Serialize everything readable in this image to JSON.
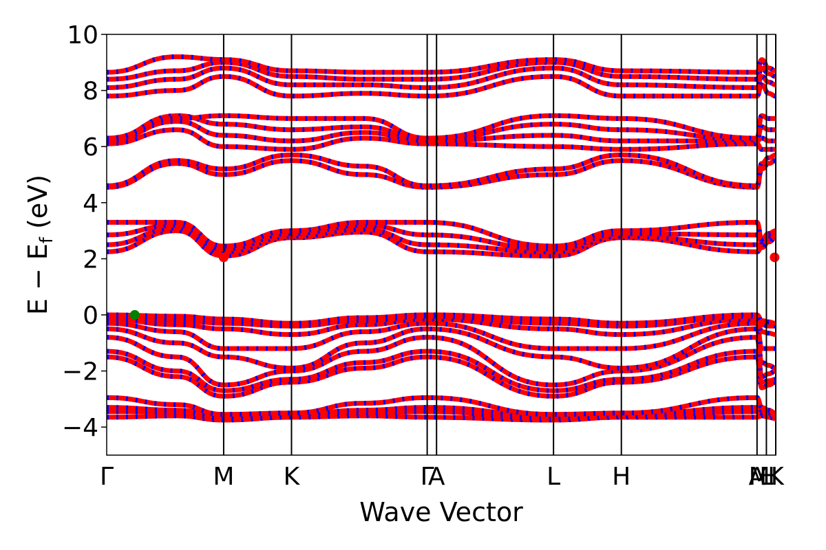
{
  "chart_data": {
    "type": "line",
    "title": "",
    "xlabel": "Wave Vector",
    "ylabel": "E − E",
    "ylabel_subscript": "f",
    "ylabel_unit": " (eV)",
    "ylim": [
      -5,
      10
    ],
    "yticks": [
      -4,
      -2,
      0,
      2,
      4,
      6,
      8,
      10
    ],
    "ytick_labels": [
      "−4",
      "−2",
      "0",
      "2",
      "4",
      "6",
      "8",
      "10"
    ],
    "xlim": [
      0,
      5.72
    ],
    "kpoints": [
      {
        "label": "Γ",
        "x": 0.0
      },
      {
        "label": "M",
        "x": 1.0
      },
      {
        "label": "K",
        "x": 1.58
      },
      {
        "label": "Γ",
        "x": 2.74
      },
      {
        "label": "A",
        "x": 2.82
      },
      {
        "label": "L",
        "x": 3.82
      },
      {
        "label": "H",
        "x": 4.4
      },
      {
        "label": "A",
        "x": 5.56
      },
      {
        "label": "L",
        "x": 5.64
      },
      {
        "label": "M",
        "x": 5.58
      },
      {
        "label": "H",
        "x": 5.66
      },
      {
        "label": "K",
        "x": 5.72
      }
    ],
    "kpoint_lines": [
      1.0,
      1.58,
      2.74,
      2.82,
      3.82,
      4.4,
      5.56,
      5.64,
      5.72
    ],
    "series": [
      {
        "color": "#ff0000",
        "dash_color": "#0000ff",
        "y": [
          -3.65,
          -3.6,
          -3.75,
          -3.65,
          -3.6,
          -3.65,
          -3.75,
          -3.65,
          -3.65,
          -3.6,
          -3.65,
          -3.7
        ]
      },
      {
        "color": "#ff0000",
        "dash_color": "#0000ff",
        "y": [
          -3.45,
          -3.45,
          -3.7,
          -3.6,
          -3.5,
          -3.45,
          -3.7,
          -3.6,
          -3.45,
          -3.5,
          -3.55,
          -3.6
        ]
      },
      {
        "color": "#ff0000",
        "dash_color": "#0000ff",
        "y": [
          -3.3,
          -3.4,
          -3.6,
          -3.55,
          -3.4,
          -3.3,
          -3.6,
          -3.55,
          -3.3,
          -3.4,
          -3.5,
          -3.55
        ]
      },
      {
        "color": "#ff0000",
        "dash_color": "#0000ff",
        "y": [
          -2.95,
          -3.2,
          -3.55,
          -3.5,
          -3.15,
          -2.95,
          -3.55,
          -3.5,
          -2.95,
          -3.3,
          -3.4,
          -3.5
        ]
      },
      {
        "color": "#ff0000",
        "dash_color": "#0000ff",
        "y": [
          -1.5,
          -2.2,
          -2.9,
          -2.4,
          -1.9,
          -1.5,
          -2.9,
          -2.4,
          -1.5,
          -2.6,
          -2.5,
          -2.4
        ]
      },
      {
        "color": "#ff0000",
        "dash_color": "#0000ff",
        "y": [
          -1.3,
          -2.0,
          -2.7,
          -2.3,
          -1.7,
          -1.3,
          -2.7,
          -2.3,
          -1.3,
          -2.4,
          -2.35,
          -2.3
        ]
      },
      {
        "color": "#ff0000",
        "dash_color": "#0000ff",
        "y": [
          -0.8,
          -1.5,
          -2.5,
          -2.0,
          -1.3,
          -0.8,
          -2.5,
          -2.0,
          -0.8,
          -2.2,
          -2.1,
          -2.0
        ]
      },
      {
        "color": "#ff0000",
        "dash_color": "#0000ff",
        "y": [
          -0.5,
          -1.0,
          -1.5,
          -1.9,
          -1.0,
          -0.5,
          -1.5,
          -1.9,
          -0.5,
          -1.7,
          -1.8,
          -1.9
        ]
      },
      {
        "color": "#ff0000",
        "dash_color": "#0000ff",
        "y": [
          -0.3,
          -0.6,
          -1.2,
          -1.2,
          -0.6,
          -0.3,
          -1.2,
          -1.2,
          -0.3,
          -1.2,
          -1.2,
          -1.2
        ]
      },
      {
        "color": "#ff0000",
        "dash_color": "#0000ff",
        "y": [
          -0.15,
          -0.35,
          -0.5,
          -0.7,
          -0.35,
          -0.15,
          -0.5,
          -0.7,
          -0.15,
          -0.6,
          -0.65,
          -0.7
        ]
      },
      {
        "color": "#ff0000",
        "dash_color": "#0000ff",
        "y": [
          -0.05,
          -0.2,
          -0.3,
          -0.4,
          -0.2,
          -0.05,
          -0.3,
          -0.4,
          -0.05,
          -0.35,
          -0.4,
          -0.4
        ]
      },
      {
        "color": "#ff0000",
        "dash_color": "#0000ff",
        "y": [
          0.0,
          -0.05,
          -0.15,
          -0.3,
          -0.1,
          0.0,
          -0.15,
          -0.3,
          0.0,
          -0.2,
          -0.25,
          -0.3
        ]
      },
      {
        "color": "#ff0000",
        "dash_color": "#0000ff",
        "y": [
          2.25,
          3.0,
          2.1,
          2.75,
          2.95,
          2.25,
          2.1,
          2.75,
          2.25,
          2.4,
          2.6,
          2.75
        ]
      },
      {
        "color": "#ff0000",
        "dash_color": "#0000ff",
        "y": [
          2.5,
          3.1,
          2.25,
          2.8,
          3.05,
          2.5,
          2.25,
          2.8,
          2.5,
          2.5,
          2.7,
          2.8
        ]
      },
      {
        "color": "#ff0000",
        "dash_color": "#0000ff",
        "y": [
          2.85,
          3.2,
          2.35,
          2.9,
          3.2,
          2.85,
          2.35,
          2.9,
          2.85,
          2.6,
          2.8,
          2.9
        ]
      },
      {
        "color": "#ff0000",
        "dash_color": "#0000ff",
        "y": [
          3.3,
          3.3,
          2.45,
          3.0,
          3.3,
          3.3,
          2.45,
          3.0,
          3.3,
          2.7,
          2.9,
          3.0
        ]
      },
      {
        "color": "#ff0000",
        "dash_color": "#0000ff",
        "y": [
          4.55,
          5.4,
          5.0,
          5.5,
          5.0,
          4.55,
          5.0,
          5.5,
          4.55,
          5.2,
          5.4,
          5.5
        ]
      },
      {
        "color": "#ff0000",
        "dash_color": "#0000ff",
        "y": [
          4.6,
          5.5,
          5.2,
          5.7,
          5.3,
          4.6,
          5.2,
          5.7,
          4.6,
          5.4,
          5.6,
          5.7
        ]
      },
      {
        "color": "#ff0000",
        "dash_color": "#0000ff",
        "y": [
          6.1,
          6.6,
          6.0,
          5.9,
          6.3,
          6.1,
          6.0,
          5.9,
          6.1,
          5.9,
          5.9,
          5.9
        ]
      },
      {
        "color": "#ff0000",
        "dash_color": "#0000ff",
        "y": [
          6.2,
          6.9,
          6.4,
          6.2,
          6.5,
          6.2,
          6.4,
          6.2,
          6.2,
          6.3,
          6.2,
          6.2
        ]
      },
      {
        "color": "#ff0000",
        "dash_color": "#0000ff",
        "y": [
          6.25,
          7.1,
          6.8,
          6.6,
          6.7,
          6.25,
          6.8,
          6.6,
          6.25,
          6.7,
          6.6,
          6.6
        ]
      },
      {
        "color": "#ff0000",
        "dash_color": "#0000ff",
        "y": [
          6.3,
          7.0,
          7.1,
          7.0,
          7.0,
          6.3,
          7.1,
          7.0,
          6.3,
          7.1,
          7.0,
          7.0
        ]
      },
      {
        "color": "#ff0000",
        "dash_color": "#0000ff",
        "y": [
          7.8,
          8.0,
          8.5,
          7.8,
          7.9,
          7.8,
          8.5,
          7.8,
          7.8,
          8.2,
          7.9,
          7.8
        ]
      },
      {
        "color": "#ff0000",
        "dash_color": "#0000ff",
        "y": [
          8.1,
          8.4,
          8.8,
          8.2,
          8.2,
          8.1,
          8.8,
          8.2,
          8.1,
          8.5,
          8.3,
          8.2
        ]
      },
      {
        "color": "#ff0000",
        "dash_color": "#0000ff",
        "y": [
          8.4,
          8.7,
          9.0,
          8.5,
          8.4,
          8.4,
          9.0,
          8.5,
          8.4,
          8.8,
          8.6,
          8.5
        ]
      },
      {
        "color": "#ff0000",
        "dash_color": "#0000ff",
        "y": [
          8.65,
          9.2,
          9.1,
          8.7,
          8.65,
          8.65,
          9.1,
          8.7,
          8.65,
          9.1,
          8.8,
          8.7
        ]
      }
    ],
    "series_x": [
      0.0,
      0.6,
      1.0,
      1.58,
      2.2,
      2.74,
      3.82,
      4.4,
      5.56,
      5.6,
      5.66,
      5.72
    ],
    "markers": [
      {
        "x": 0.24,
        "y": 0.0,
        "color": "#008000"
      },
      {
        "x": 1.0,
        "y": 2.05,
        "color": "#ff0000"
      },
      {
        "x": 5.71,
        "y": 2.05,
        "color": "#ff0000"
      }
    ]
  }
}
